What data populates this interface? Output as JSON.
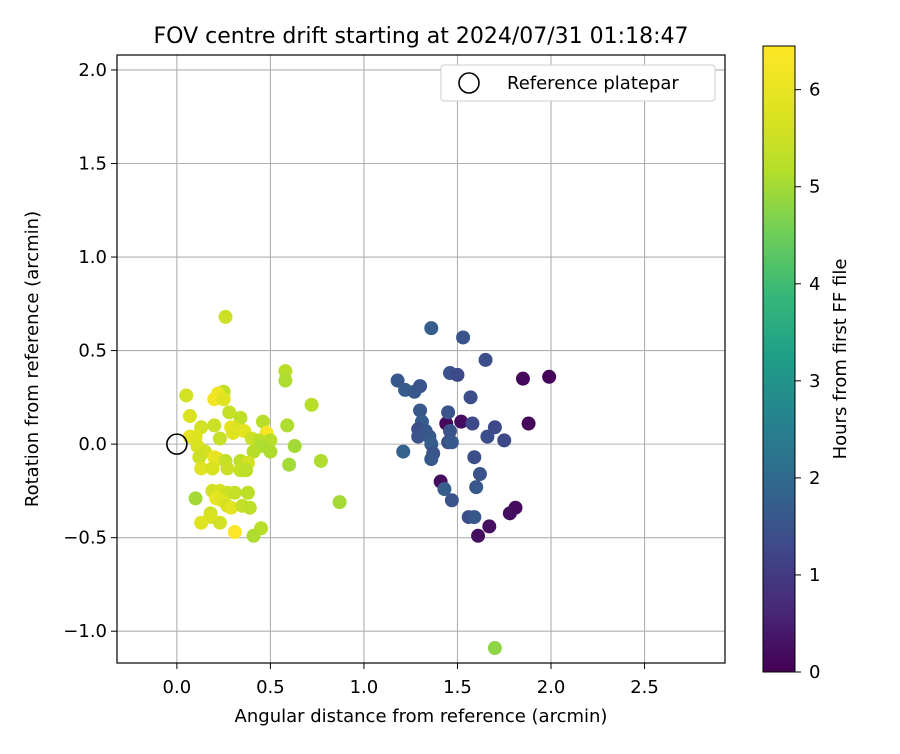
{
  "chart_data": {
    "type": "scatter",
    "title": "FOV centre drift starting at 2024/07/31 01:18:47",
    "xlabel": "Angular distance from reference (arcmin)",
    "ylabel": "Rotation from reference (arcmin)",
    "xlim": [
      -0.32,
      2.93
    ],
    "ylim": [
      -1.17,
      2.08
    ],
    "xticks": [
      0.0,
      0.5,
      1.0,
      1.5,
      2.0,
      2.5
    ],
    "xtick_labels": [
      "0.0",
      "0.5",
      "1.0",
      "1.5",
      "2.0",
      "2.5"
    ],
    "yticks": [
      -1.0,
      -0.5,
      0.0,
      0.5,
      1.0,
      1.5,
      2.0
    ],
    "ytick_labels": [
      "−1.0",
      "−0.5",
      "0.0",
      "0.5",
      "1.0",
      "1.5",
      "2.0"
    ],
    "grid": true,
    "legend": {
      "placement": "top-right",
      "entries": [
        "Reference platepar"
      ]
    },
    "reference_point": {
      "label": "Reference platepar",
      "x": 0.0,
      "y": 0.0
    },
    "colorbar": {
      "label": "Hours from first FF file",
      "range": [
        0,
        6.45
      ],
      "ticks": [
        0,
        1,
        2,
        3,
        4,
        5,
        6
      ],
      "tick_labels": [
        "0",
        "1",
        "2",
        "3",
        "4",
        "5",
        "6"
      ],
      "colormap": "viridis"
    },
    "points": [
      {
        "x": 1.44,
        "y": 0.11,
        "c": 0.1
      },
      {
        "x": 1.52,
        "y": 0.12,
        "c": 0.2
      },
      {
        "x": 1.41,
        "y": -0.2,
        "c": 0.2
      },
      {
        "x": 1.85,
        "y": 0.35,
        "c": 0.1
      },
      {
        "x": 1.99,
        "y": 0.36,
        "c": 0.05
      },
      {
        "x": 1.88,
        "y": 0.11,
        "c": 0.1
      },
      {
        "x": 1.81,
        "y": -0.34,
        "c": 0.15
      },
      {
        "x": 1.78,
        "y": -0.37,
        "c": 0.2
      },
      {
        "x": 1.67,
        "y": -0.44,
        "c": 0.25
      },
      {
        "x": 1.61,
        "y": -0.49,
        "c": 0.2
      },
      {
        "x": 1.36,
        "y": 0.62,
        "c": 1.7
      },
      {
        "x": 1.53,
        "y": 0.57,
        "c": 1.5
      },
      {
        "x": 1.65,
        "y": 0.45,
        "c": 1.4
      },
      {
        "x": 1.18,
        "y": 0.34,
        "c": 1.6
      },
      {
        "x": 1.46,
        "y": 0.38,
        "c": 1.5
      },
      {
        "x": 1.5,
        "y": 0.37,
        "c": 1.3
      },
      {
        "x": 1.22,
        "y": 0.29,
        "c": 1.7
      },
      {
        "x": 1.27,
        "y": 0.28,
        "c": 1.6
      },
      {
        "x": 1.3,
        "y": 0.31,
        "c": 1.5
      },
      {
        "x": 1.57,
        "y": 0.25,
        "c": 1.4
      },
      {
        "x": 1.3,
        "y": 0.18,
        "c": 1.6
      },
      {
        "x": 1.45,
        "y": 0.17,
        "c": 1.5
      },
      {
        "x": 1.31,
        "y": 0.12,
        "c": 1.7
      },
      {
        "x": 1.58,
        "y": 0.11,
        "c": 1.3
      },
      {
        "x": 1.29,
        "y": 0.08,
        "c": 1.4
      },
      {
        "x": 1.33,
        "y": 0.07,
        "c": 1.6
      },
      {
        "x": 1.46,
        "y": 0.07,
        "c": 1.5
      },
      {
        "x": 1.7,
        "y": 0.09,
        "c": 1.3
      },
      {
        "x": 1.29,
        "y": 0.04,
        "c": 1.5
      },
      {
        "x": 1.35,
        "y": 0.04,
        "c": 1.6
      },
      {
        "x": 1.66,
        "y": 0.04,
        "c": 1.4
      },
      {
        "x": 1.75,
        "y": 0.02,
        "c": 1.3
      },
      {
        "x": 1.36,
        "y": 0.0,
        "c": 1.7
      },
      {
        "x": 1.45,
        "y": 0.01,
        "c": 1.4
      },
      {
        "x": 1.47,
        "y": 0.01,
        "c": 1.6
      },
      {
        "x": 1.21,
        "y": -0.04,
        "c": 1.8
      },
      {
        "x": 1.37,
        "y": -0.05,
        "c": 1.5
      },
      {
        "x": 1.36,
        "y": -0.08,
        "c": 1.6
      },
      {
        "x": 1.59,
        "y": -0.07,
        "c": 1.4
      },
      {
        "x": 1.62,
        "y": -0.16,
        "c": 1.5
      },
      {
        "x": 1.6,
        "y": -0.23,
        "c": 1.6
      },
      {
        "x": 1.43,
        "y": -0.24,
        "c": 1.7
      },
      {
        "x": 1.47,
        "y": -0.3,
        "c": 1.5
      },
      {
        "x": 1.56,
        "y": -0.39,
        "c": 1.4
      },
      {
        "x": 1.59,
        "y": -0.39,
        "c": 1.6
      },
      {
        "x": 0.26,
        "y": 0.68,
        "c": 5.5
      },
      {
        "x": 0.58,
        "y": 0.39,
        "c": 5.2
      },
      {
        "x": 0.58,
        "y": 0.34,
        "c": 5.1
      },
      {
        "x": 0.25,
        "y": 0.28,
        "c": 5.3
      },
      {
        "x": 0.05,
        "y": 0.26,
        "c": 5.6
      },
      {
        "x": 0.22,
        "y": 0.27,
        "c": 6.1
      },
      {
        "x": 0.2,
        "y": 0.24,
        "c": 6.2
      },
      {
        "x": 0.25,
        "y": 0.24,
        "c": 5.8
      },
      {
        "x": 0.72,
        "y": 0.21,
        "c": 5.2
      },
      {
        "x": 0.28,
        "y": 0.17,
        "c": 5.4
      },
      {
        "x": 0.07,
        "y": 0.15,
        "c": 5.7
      },
      {
        "x": 0.34,
        "y": 0.14,
        "c": 5.3
      },
      {
        "x": 0.46,
        "y": 0.12,
        "c": 5.2
      },
      {
        "x": 0.59,
        "y": 0.1,
        "c": 5.1
      },
      {
        "x": 0.13,
        "y": 0.09,
        "c": 5.6
      },
      {
        "x": 0.2,
        "y": 0.1,
        "c": 5.5
      },
      {
        "x": 0.29,
        "y": 0.09,
        "c": 6.0
      },
      {
        "x": 0.32,
        "y": 0.08,
        "c": 5.7
      },
      {
        "x": 0.36,
        "y": 0.07,
        "c": 5.9
      },
      {
        "x": 0.3,
        "y": 0.06,
        "c": 5.8
      },
      {
        "x": 0.48,
        "y": 0.06,
        "c": 6.3
      },
      {
        "x": 0.07,
        "y": 0.04,
        "c": 6.0
      },
      {
        "x": 0.1,
        "y": 0.04,
        "c": 5.8
      },
      {
        "x": 0.23,
        "y": 0.03,
        "c": 5.4
      },
      {
        "x": 0.4,
        "y": 0.03,
        "c": 5.5
      },
      {
        "x": 0.44,
        "y": 0.02,
        "c": 5.3
      },
      {
        "x": 0.5,
        "y": 0.02,
        "c": 5.2
      },
      {
        "x": 0.45,
        "y": -0.01,
        "c": 5.1
      },
      {
        "x": 0.63,
        "y": -0.01,
        "c": 5.0
      },
      {
        "x": 0.11,
        "y": -0.01,
        "c": 5.7
      },
      {
        "x": 0.15,
        "y": -0.04,
        "c": 5.6
      },
      {
        "x": 0.41,
        "y": -0.04,
        "c": 5.2
      },
      {
        "x": 0.5,
        "y": -0.04,
        "c": 5.1
      },
      {
        "x": 0.12,
        "y": -0.07,
        "c": 5.5
      },
      {
        "x": 0.2,
        "y": -0.07,
        "c": 6.1
      },
      {
        "x": 0.22,
        "y": -0.08,
        "c": 5.9
      },
      {
        "x": 0.26,
        "y": -0.09,
        "c": 5.4
      },
      {
        "x": 0.34,
        "y": -0.09,
        "c": 5.3
      },
      {
        "x": 0.38,
        "y": -0.1,
        "c": 5.6
      },
      {
        "x": 0.77,
        "y": -0.09,
        "c": 5.1
      },
      {
        "x": 0.6,
        "y": -0.11,
        "c": 5.0
      },
      {
        "x": 0.13,
        "y": -0.13,
        "c": 5.8
      },
      {
        "x": 0.19,
        "y": -0.13,
        "c": 5.7
      },
      {
        "x": 0.27,
        "y": -0.13,
        "c": 5.5
      },
      {
        "x": 0.34,
        "y": -0.14,
        "c": 5.4
      },
      {
        "x": 0.37,
        "y": -0.14,
        "c": 5.3
      },
      {
        "x": 0.19,
        "y": -0.25,
        "c": 5.6
      },
      {
        "x": 0.23,
        "y": -0.25,
        "c": 5.7
      },
      {
        "x": 0.27,
        "y": -0.26,
        "c": 5.5
      },
      {
        "x": 0.31,
        "y": -0.26,
        "c": 5.4
      },
      {
        "x": 0.38,
        "y": -0.26,
        "c": 5.3
      },
      {
        "x": 0.1,
        "y": -0.29,
        "c": 5.0
      },
      {
        "x": 0.21,
        "y": -0.29,
        "c": 6.0
      },
      {
        "x": 0.24,
        "y": -0.3,
        "c": 5.8
      },
      {
        "x": 0.87,
        "y": -0.31,
        "c": 5.0
      },
      {
        "x": 0.27,
        "y": -0.33,
        "c": 5.6
      },
      {
        "x": 0.29,
        "y": -0.34,
        "c": 5.9
      },
      {
        "x": 0.35,
        "y": -0.33,
        "c": 5.4
      },
      {
        "x": 0.39,
        "y": -0.34,
        "c": 5.3
      },
      {
        "x": 0.18,
        "y": -0.37,
        "c": 5.5
      },
      {
        "x": 0.18,
        "y": -0.39,
        "c": 5.7
      },
      {
        "x": 0.13,
        "y": -0.42,
        "c": 5.8
      },
      {
        "x": 0.23,
        "y": -0.42,
        "c": 5.6
      },
      {
        "x": 0.45,
        "y": -0.45,
        "c": 5.2
      },
      {
        "x": 0.31,
        "y": -0.47,
        "c": 6.4
      },
      {
        "x": 0.41,
        "y": -0.49,
        "c": 5.1
      },
      {
        "x": 1.7,
        "y": -1.09,
        "c": 4.8
      }
    ]
  }
}
